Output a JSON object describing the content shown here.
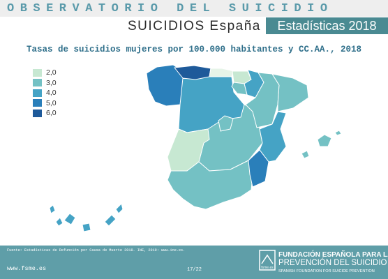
{
  "header": {
    "observatorio": "OBSERVATORIO DEL SUICIDIO",
    "subtitle_left": "SUICIDIOS España",
    "subtitle_right": "Estadísticas 2018"
  },
  "map": {
    "title": "Tasas de suicidios mujeres por 100.000 habitantes y CC.AA., 2018",
    "legend": [
      {
        "label": "2,0",
        "color": "#c7e8d2"
      },
      {
        "label": "3,0",
        "color": "#74c1c4"
      },
      {
        "label": "4,0",
        "color": "#45a3c5"
      },
      {
        "label": "5,0",
        "color": "#2a7fba"
      },
      {
        "label": "6,0",
        "color": "#1e5a9a"
      }
    ],
    "region_colors": {
      "asturias": "#1e5a9a",
      "galicia": "#2a7fba",
      "murcia": "#2a7fba",
      "castilla_leon": "#45a3c5",
      "cataluna": "#74c1c4",
      "extremadura": "#c7e8d2",
      "cantabria": "#e6f4e8",
      "pais_vasco": "#c7e8d2"
    }
  },
  "footer": {
    "source": "Fuente: Estadísticas de Defunción por Causa de Muerte 2018. INE, 2019: www.ine.es.",
    "website": "www.fsme.es",
    "page": "17/22",
    "logo_text": "fsme.es",
    "org_line1": "FUNDACIÓN ESPAÑOLA PARA LA",
    "org_line2": "PREVENCIÓN DEL SUICIDIO",
    "org_line3": "SPANISH FOUNDATION FOR SUICIDE PREVENTION"
  }
}
